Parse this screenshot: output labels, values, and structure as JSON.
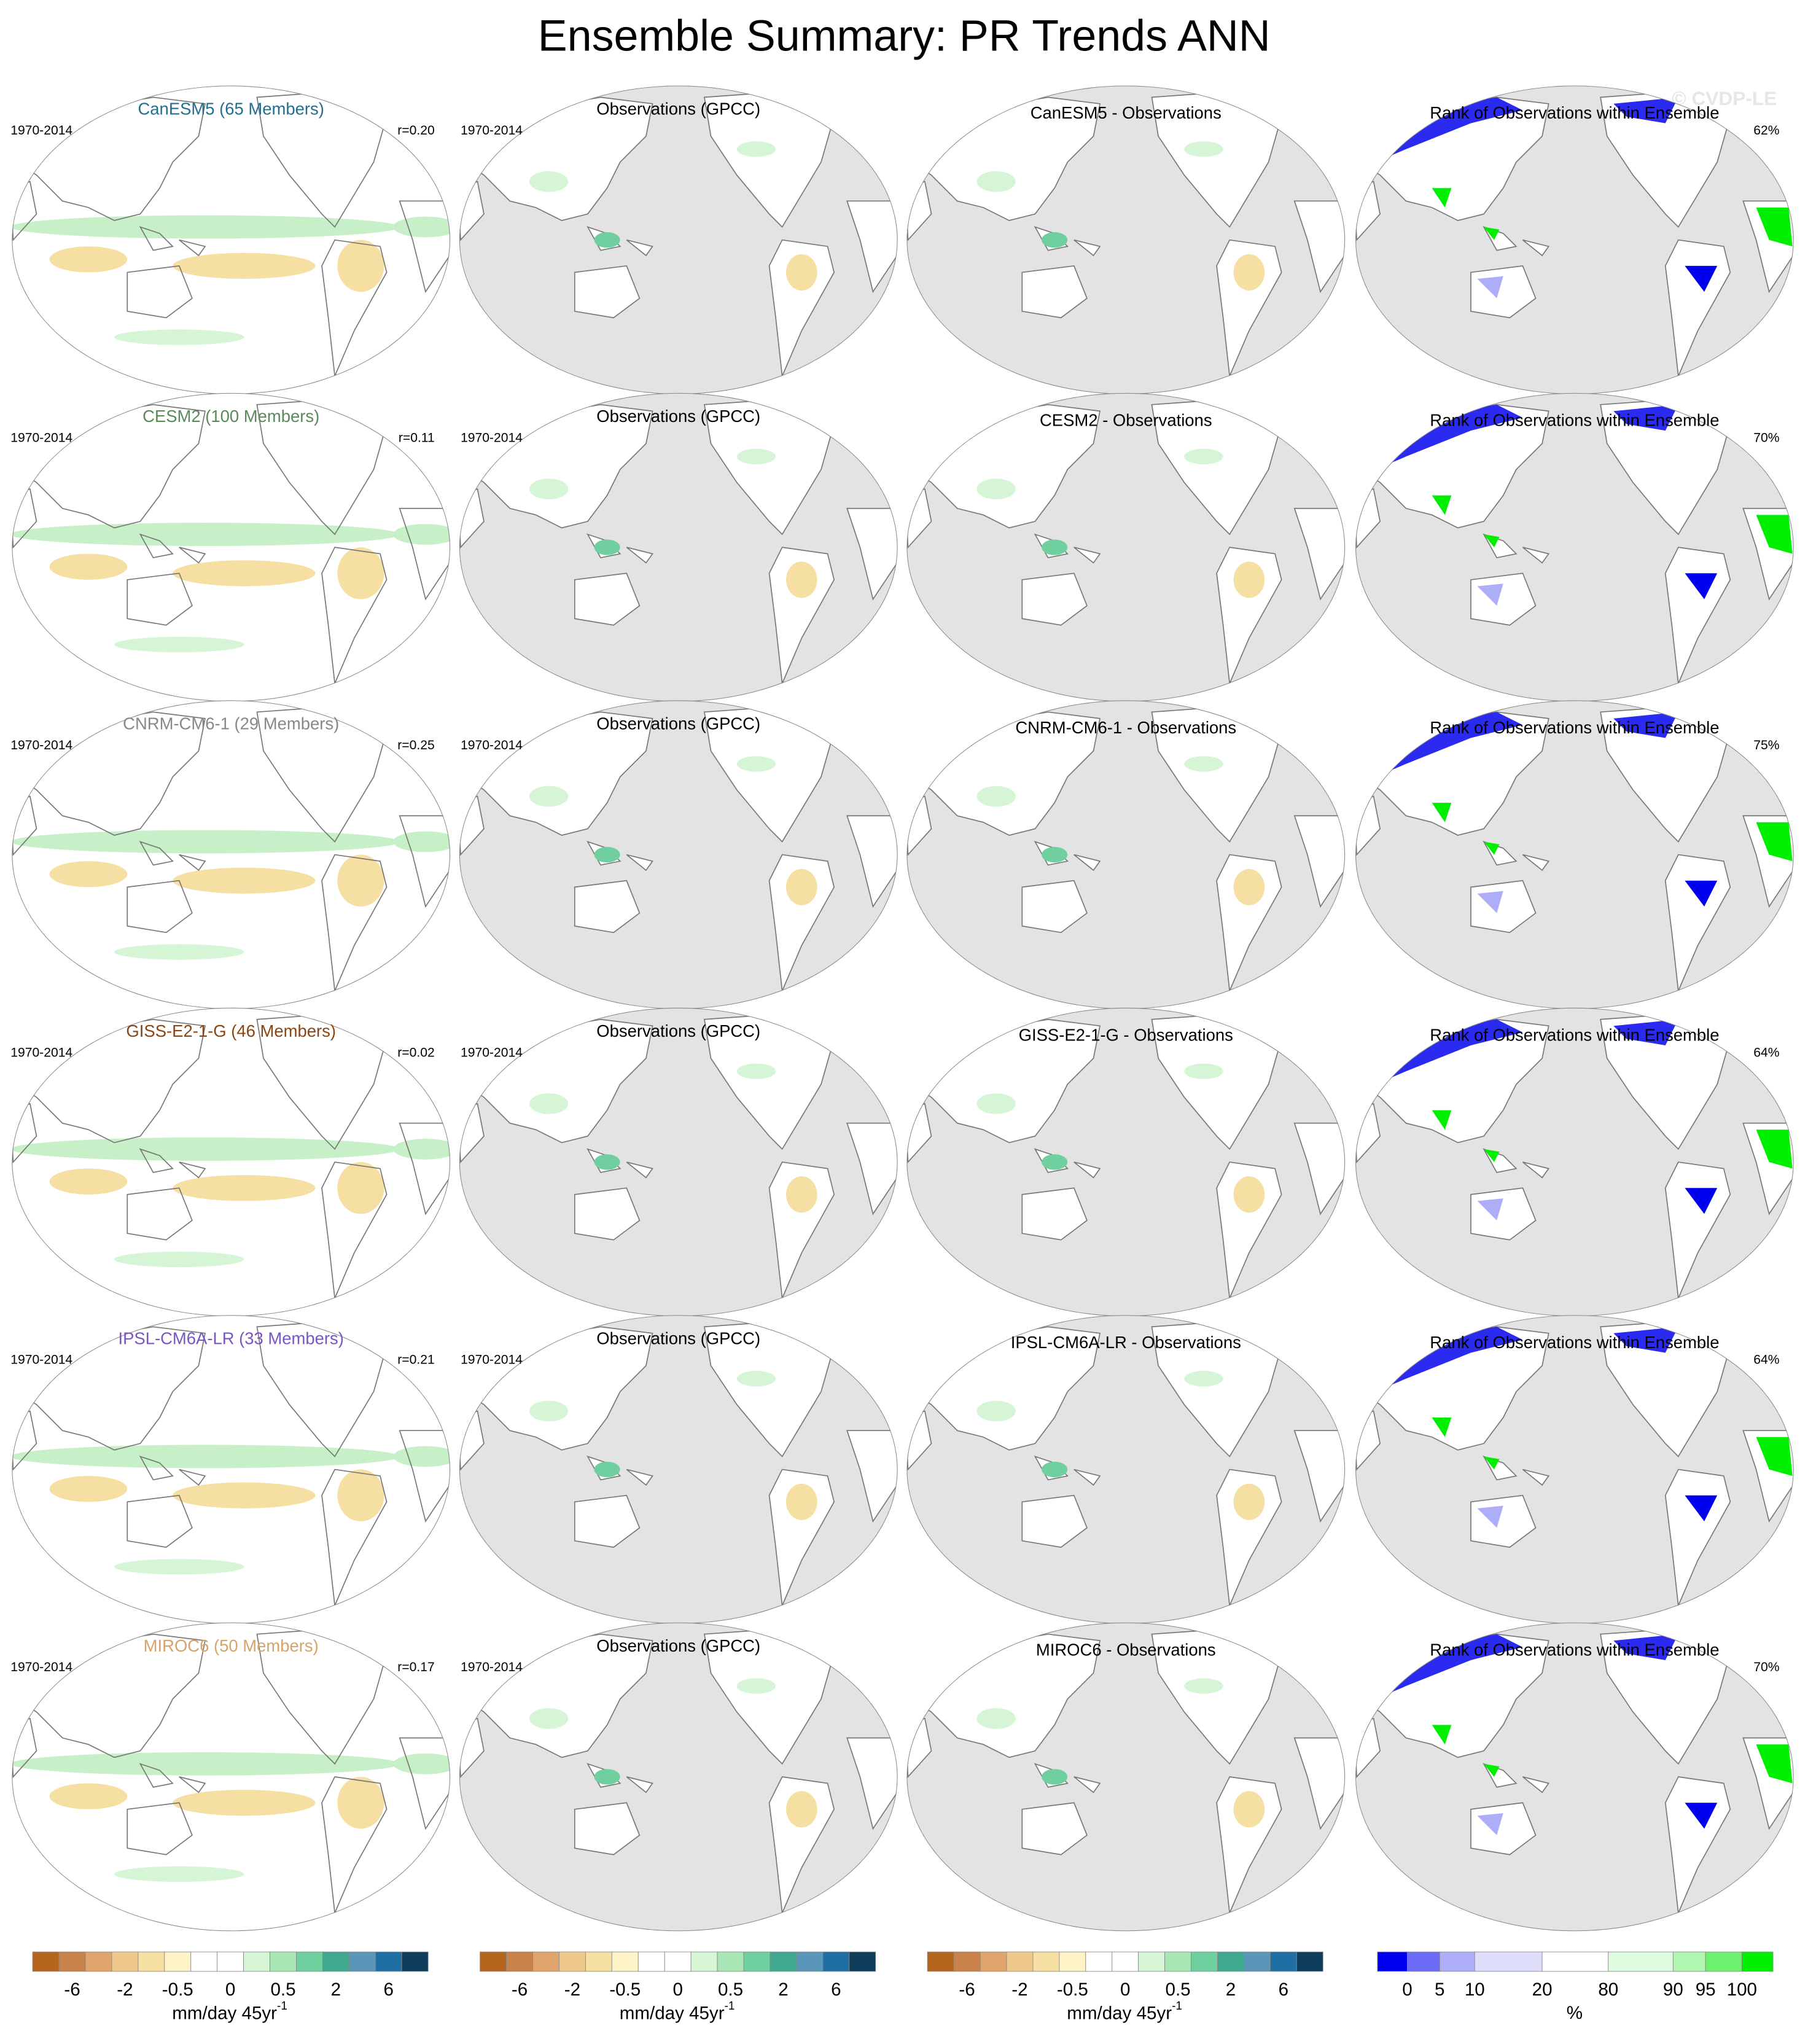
{
  "title": "Ensemble Summary: PR Trends ANN",
  "watermark": "© CVDP-LE",
  "rows": [
    {
      "model_title": "CanESM5 (65 Members)",
      "model_color": "#1f6f8f",
      "period": "1970-2014",
      "r": "r=0.20",
      "obs_title": "Observations (GPCC)",
      "obs_period": "1970-2014",
      "diff_title": "CanESM5 - Observations",
      "rank_title": "Rank of Observations within Ensemble",
      "rank_pct": "62%"
    },
    {
      "model_title": "CESM2 (100 Members)",
      "model_color": "#5a8a5a",
      "period": "1970-2014",
      "r": "r=0.11",
      "obs_title": "Observations (GPCC)",
      "obs_period": "1970-2014",
      "diff_title": "CESM2 - Observations",
      "rank_title": "Rank of Observations within Ensemble",
      "rank_pct": "70%"
    },
    {
      "model_title": "CNRM-CM6-1 (29 Members)",
      "model_color": "#888888",
      "period": "1970-2014",
      "r": "r=0.25",
      "obs_title": "Observations (GPCC)",
      "obs_period": "1970-2014",
      "diff_title": "CNRM-CM6-1 - Observations",
      "rank_title": "Rank of Observations within Ensemble",
      "rank_pct": "75%"
    },
    {
      "model_title": "GISS-E2-1-G (46 Members)",
      "model_color": "#8b4513",
      "period": "1970-2014",
      "r": "r=0.02",
      "obs_title": "Observations (GPCC)",
      "obs_period": "1970-2014",
      "diff_title": "GISS-E2-1-G - Observations",
      "rank_title": "Rank of Observations within Ensemble",
      "rank_pct": "64%"
    },
    {
      "model_title": "IPSL-CM6A-LR (33 Members)",
      "model_color": "#7b55c4",
      "period": "1970-2014",
      "r": "r=0.21",
      "obs_title": "Observations (GPCC)",
      "obs_period": "1970-2014",
      "diff_title": "IPSL-CM6A-LR - Observations",
      "rank_title": "Rank of Observations within Ensemble",
      "rank_pct": "64%"
    },
    {
      "model_title": "MIROC6 (50 Members)",
      "model_color": "#d4a46a",
      "period": "1970-2014",
      "r": "r=0.17",
      "obs_title": "Observations (GPCC)",
      "obs_period": "1970-2014",
      "diff_title": "MIROC6 - Observations",
      "rank_title": "Rank of Observations within Ensemble",
      "rank_pct": "70%"
    }
  ],
  "trend_colorbar": {
    "colors": [
      "#b5651d",
      "#c8824a",
      "#dfa56d",
      "#efc98c",
      "#f6dfa2",
      "#fdf3c6",
      "#ffffff",
      "#ffffff",
      "#d6f5d6",
      "#a8e6b5",
      "#6fcf9f",
      "#3fa98f",
      "#5a96b8",
      "#1f6fa5",
      "#0e3d5c"
    ],
    "ticks": [
      "-6",
      "-2",
      "-0.5",
      "0",
      "0.5",
      "2",
      "6"
    ],
    "unit": "mm/day 45yr",
    "unit_exponent": "-1"
  },
  "rank_colorbar": {
    "colors": [
      "#0000ee",
      "#6b6bf5",
      "#aeaef8",
      "#dedefb",
      "#ffffff",
      "#dffbdf",
      "#b0f5b0",
      "#70f070",
      "#00ee00"
    ],
    "ticks": [
      "0",
      "5",
      "10",
      "20",
      "80",
      "90",
      "95",
      "100"
    ],
    "unit": "%"
  }
}
